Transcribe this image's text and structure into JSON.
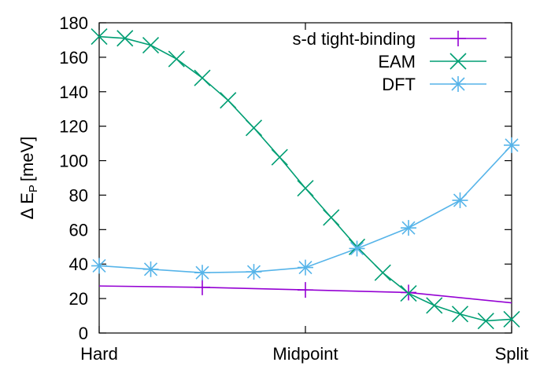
{
  "chart_data": {
    "type": "line",
    "title": "",
    "xlabel": "",
    "ylabel": "Δ E",
    "ylabel_subscript": "P",
    "ylabel_unit": "[meV]",
    "xlim": [
      0,
      1
    ],
    "ylim": [
      0,
      180
    ],
    "x_ticks": [
      {
        "value": 0,
        "label": "Hard"
      },
      {
        "value": 0.5,
        "label": "Midpoint"
      },
      {
        "value": 1,
        "label": "Split"
      }
    ],
    "y_ticks": [
      0,
      20,
      40,
      60,
      80,
      100,
      120,
      140,
      160,
      180
    ],
    "grid": false,
    "legend_position": "top-right",
    "series": [
      {
        "name": "s-d tight-binding",
        "color": "#9400d3",
        "marker": "plus",
        "line": [
          [
            0,
            27.3
          ],
          [
            0.25,
            26.5
          ],
          [
            0.5,
            25.0
          ],
          [
            0.75,
            23.5
          ],
          [
            1,
            17.5
          ]
        ],
        "points": [
          [
            0.25,
            26.5
          ],
          [
            0.5,
            25.0
          ],
          [
            0.75,
            23.5
          ]
        ]
      },
      {
        "name": "EAM",
        "color": "#009e73",
        "marker": "cross",
        "points": [
          [
            0,
            172
          ],
          [
            0.0625,
            171
          ],
          [
            0.125,
            167
          ],
          [
            0.1875,
            159
          ],
          [
            0.25,
            148
          ],
          [
            0.3125,
            135
          ],
          [
            0.375,
            119
          ],
          [
            0.4375,
            102
          ],
          [
            0.5,
            84
          ],
          [
            0.5625,
            67
          ],
          [
            0.625,
            50
          ],
          [
            0.6875,
            35
          ],
          [
            0.75,
            23
          ],
          [
            0.8125,
            16
          ],
          [
            0.875,
            11
          ],
          [
            0.9375,
            7
          ],
          [
            1,
            8
          ]
        ]
      },
      {
        "name": "DFT",
        "color": "#56b4e9",
        "marker": "star",
        "points": [
          [
            0,
            39
          ],
          [
            0.125,
            37
          ],
          [
            0.25,
            35
          ],
          [
            0.375,
            35.5
          ],
          [
            0.5,
            38
          ],
          [
            0.625,
            49
          ],
          [
            0.75,
            61
          ],
          [
            0.875,
            77
          ],
          [
            1,
            109
          ]
        ]
      }
    ]
  }
}
